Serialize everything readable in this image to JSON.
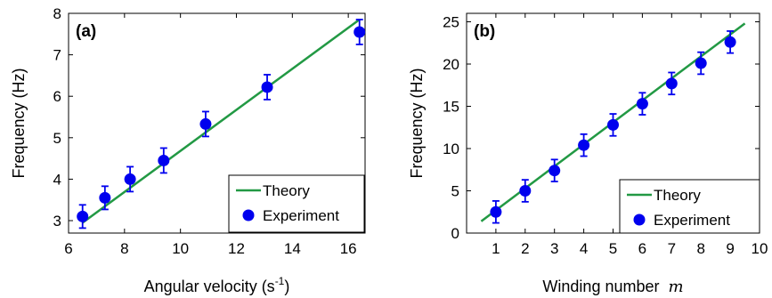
{
  "chart_data": [
    {
      "type": "scatter",
      "panel_label": "(a)",
      "xlabel": "Angular velocity (s",
      "xlabel_sup": "-1",
      "xlabel_close": ")",
      "ylabel": "Frequency (Hz)",
      "xlim": [
        6,
        16.6
      ],
      "ylim": [
        2.7,
        8
      ],
      "x_ticks": [
        "6",
        "8",
        "10",
        "12",
        "14",
        "16"
      ],
      "y_ticks": [
        "3",
        "4",
        "5",
        "6",
        "7",
        "8"
      ],
      "x_tick_values": [
        6,
        8,
        10,
        12,
        14,
        16
      ],
      "y_tick_values": [
        3,
        4,
        5,
        6,
        7,
        8
      ],
      "legend_placement": "bottom-right",
      "series": [
        {
          "name": "Theory",
          "kind": "line",
          "color": "#229944",
          "x": [
            6.5,
            16.4
          ],
          "y": [
            2.95,
            7.85
          ]
        },
        {
          "name": "Experiment",
          "kind": "scatter",
          "color": "#0000ee",
          "x": [
            6.5,
            7.3,
            8.2,
            9.4,
            10.9,
            13.1,
            16.4
          ],
          "y": [
            3.1,
            3.55,
            4.0,
            4.45,
            5.33,
            6.22,
            7.55
          ],
          "err": [
            0.28,
            0.28,
            0.3,
            0.3,
            0.3,
            0.3,
            0.3
          ]
        }
      ]
    },
    {
      "type": "scatter",
      "panel_label": "(b)",
      "xlabel": "Winding number",
      "xlabel_math": "m",
      "ylabel": "Frequency (Hz)",
      "xlim": [
        0,
        10
      ],
      "ylim": [
        0,
        26
      ],
      "x_ticks": [
        "1",
        "2",
        "3",
        "4",
        "5",
        "6",
        "7",
        "8",
        "9",
        "10"
      ],
      "y_ticks": [
        "0",
        "5",
        "10",
        "15",
        "20",
        "25"
      ],
      "x_tick_values": [
        1,
        2,
        3,
        4,
        5,
        6,
        7,
        8,
        9,
        10
      ],
      "y_tick_values": [
        0,
        5,
        10,
        15,
        20,
        25
      ],
      "legend_placement": "bottom-right",
      "series": [
        {
          "name": "Theory",
          "kind": "line",
          "color": "#229944",
          "x": [
            0.5,
            9.5
          ],
          "y": [
            1.4,
            24.8
          ]
        },
        {
          "name": "Experiment",
          "kind": "scatter",
          "color": "#0000ee",
          "x": [
            1,
            2,
            3,
            4,
            5,
            6,
            7,
            8,
            9
          ],
          "y": [
            2.5,
            5.0,
            7.4,
            10.4,
            12.8,
            15.3,
            17.7,
            20.1,
            22.6
          ],
          "err": [
            1.3,
            1.3,
            1.3,
            1.3,
            1.3,
            1.3,
            1.3,
            1.3,
            1.3
          ]
        }
      ]
    }
  ]
}
